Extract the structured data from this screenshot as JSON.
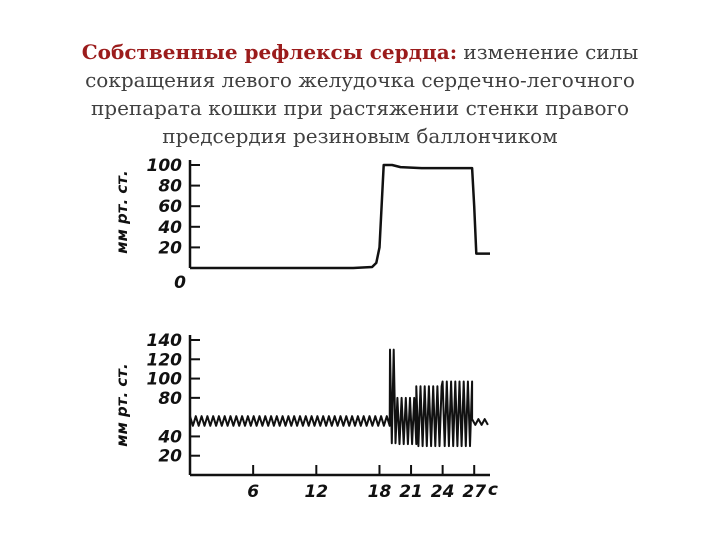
{
  "slide": {
    "title_bold": "Собственные рефлексы сердца:",
    "title_rest": " изменение силы сокращения левого желудочка сердечно-легочного препарата кошки при растяжении стенки правого предсердия резиновым баллончиком"
  },
  "chart_data": [
    {
      "type": "line",
      "name": "top",
      "ylabel": "мм рт. ст.",
      "ytick_labels": [
        "100",
        "80",
        "60",
        "40",
        "20",
        "0"
      ],
      "yticks": [
        100,
        80,
        60,
        40,
        20,
        0
      ],
      "ylim": [
        0,
        100
      ],
      "xlim": [
        0,
        28.5
      ],
      "series": [
        {
          "x": [
            0,
            15.5,
            17.3,
            17.7,
            18.0,
            18.4,
            19.2,
            20,
            22,
            26,
            26.8,
            27.0,
            27.2,
            27.6,
            28.5
          ],
          "y": [
            0,
            0,
            1,
            5,
            20,
            100,
            100,
            98,
            97,
            97,
            97,
            60,
            14,
            14,
            14
          ]
        }
      ]
    },
    {
      "type": "line",
      "name": "bottom",
      "ylabel": "мм рт. ст.",
      "ytick_labels": [
        "140",
        "120",
        "100",
        "80",
        "40",
        "20"
      ],
      "yticks": [
        140,
        120,
        100,
        80,
        40,
        20
      ],
      "ylim": [
        0,
        140
      ],
      "xlabel": "с",
      "xtick_labels": [
        "6",
        "12",
        "18",
        "21",
        "24",
        "27"
      ],
      "xticks": [
        6,
        12,
        18,
        21,
        24,
        27
      ],
      "xlim": [
        0,
        28.5
      ],
      "baseline": 56,
      "segments": [
        {
          "from": 0,
          "to": 19,
          "period": 0.55,
          "low": 51,
          "high": 61
        },
        {
          "from": 19,
          "to": 19.7,
          "period": 0.35,
          "low": 33,
          "high": 130
        },
        {
          "from": 19.7,
          "to": 21.5,
          "period": 0.4,
          "low": 32,
          "high": 80
        },
        {
          "from": 21.5,
          "to": 24,
          "period": 0.4,
          "low": 30,
          "high": 92
        },
        {
          "from": 24,
          "to": 26.8,
          "period": 0.4,
          "low": 30,
          "high": 97
        },
        {
          "from": 26.8,
          "to": 28.5,
          "period": 0.6,
          "low": 52,
          "high": 58
        }
      ]
    }
  ]
}
